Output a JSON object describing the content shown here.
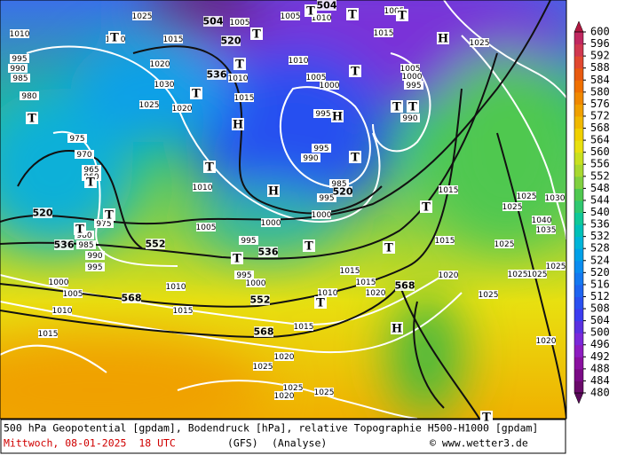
{
  "map": {
    "labels": [
      "1025",
      "1005",
      "1005",
      "1010",
      "1015",
      "1005",
      "1010",
      "1020",
      "1015",
      "1020",
      "1030",
      "1025",
      "1020",
      "1015",
      "1010",
      "1010",
      "1005",
      "1000",
      "995",
      "995",
      "990",
      "985",
      "995",
      "1000",
      "1005",
      "1000",
      "995",
      "990",
      "1025",
      "1015",
      "1025",
      "1030",
      "1025",
      "1040",
      "1035",
      "1025",
      "1015",
      "1025",
      "1025",
      "1025",
      "1025",
      "1020",
      "1020",
      "1015",
      "1015",
      "1010",
      "1005",
      "1000",
      "995",
      "995",
      "1000",
      "1010",
      "1010",
      "1015",
      "1015",
      "1010",
      "1005",
      "1000",
      "995",
      "990",
      "985",
      "980",
      "975",
      "965",
      "960",
      "970",
      "975",
      "980",
      "985",
      "990",
      "995",
      "1015",
      "1020",
      "1025",
      "1025",
      "1020",
      "1025",
      "1020",
      "504",
      "520",
      "536",
      "520",
      "536",
      "552",
      "568",
      "552",
      "568",
      "536",
      "504",
      "520",
      "568",
      "T",
      "T",
      "T",
      "T",
      "T",
      "T",
      "T",
      "T",
      "H",
      "T",
      "H",
      "H",
      "T",
      "T",
      "T",
      "H",
      "T",
      "T",
      "T",
      "T",
      "T",
      "T",
      "T",
      "T",
      "T",
      "H",
      "T"
    ]
  },
  "colorbar": {
    "ticks": [
      600,
      596,
      592,
      588,
      584,
      580,
      576,
      572,
      568,
      564,
      560,
      556,
      552,
      548,
      544,
      540,
      536,
      532,
      528,
      524,
      520,
      516,
      512,
      508,
      504,
      500,
      496,
      492,
      488,
      484,
      480
    ],
    "colors": [
      "#6a0a6a",
      "#7a0b85",
      "#8a10a0",
      "#8d1cc0",
      "#7a28d8",
      "#5a30e0",
      "#3c3cf0",
      "#2a50f0",
      "#1e64f0",
      "#1478f0",
      "#0a8cf0",
      "#00a0e8",
      "#00b4d8",
      "#00c0b8",
      "#10c898",
      "#30c870",
      "#50c850",
      "#80d040",
      "#a8d830",
      "#c8e020",
      "#e8e010",
      "#f0d000",
      "#f0b800",
      "#f0a000",
      "#f08800",
      "#f07000",
      "#e85a10",
      "#e04830",
      "#d03850",
      "#c02860"
    ]
  },
  "footer": {
    "description": "500 hPa Geopotential [gpdam], Bodendruck [hPa], relative Topographie H500-H1000 [gpdam]",
    "date": "Mittwoch, 08-01-2025  18 UTC",
    "model": "(GFS)",
    "run": "(Analyse)",
    "credit": "© www.wetter3.de"
  }
}
